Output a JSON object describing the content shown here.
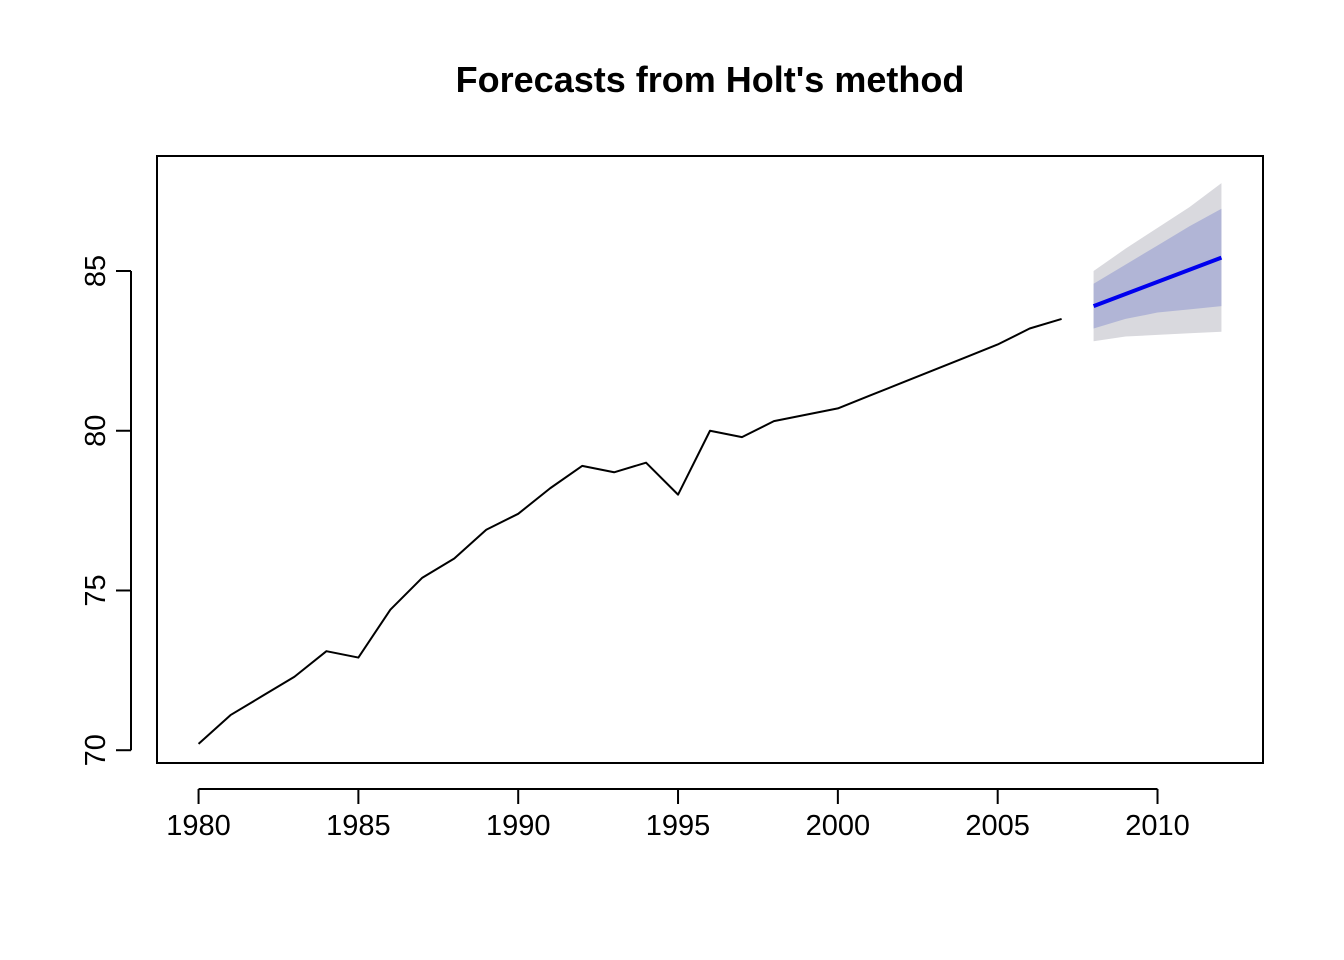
{
  "chart_data": {
    "type": "line",
    "title": "Forecasts from Holt's method",
    "xlabel": "",
    "ylabel": "",
    "xlim": [
      1978.7,
      2013.3
    ],
    "ylim": [
      69.6,
      88.6
    ],
    "x_ticks": [
      1980,
      1985,
      1990,
      1995,
      2000,
      2005,
      2010
    ],
    "y_ticks": [
      70,
      75,
      80,
      85
    ],
    "grid": false,
    "legend": "none",
    "series": [
      {
        "role": "observed",
        "color": "#000000",
        "x": [
          1980,
          1981,
          1982,
          1983,
          1984,
          1985,
          1986,
          1987,
          1988,
          1989,
          1990,
          1991,
          1992,
          1993,
          1994,
          1995,
          1996,
          1997,
          1998,
          1999,
          2000,
          2001,
          2002,
          2003,
          2004,
          2005,
          2006,
          2007
        ],
        "values": [
          70.2,
          71.1,
          71.7,
          72.3,
          73.1,
          72.9,
          74.4,
          75.4,
          76.0,
          76.9,
          77.4,
          78.2,
          78.9,
          78.7,
          79.0,
          78.0,
          80.0,
          79.8,
          80.3,
          80.5,
          80.7,
          81.1,
          81.5,
          81.9,
          82.3,
          82.7,
          83.2,
          83.5
        ]
      },
      {
        "role": "forecast",
        "color": "#0000EE",
        "x": [
          2008,
          2009,
          2010,
          2011,
          2012
        ],
        "values": [
          83.9,
          84.28,
          84.66,
          85.04,
          85.42
        ]
      }
    ],
    "intervals": [
      {
        "level": "95",
        "color": "#D9D9DE",
        "x": [
          2008,
          2009,
          2010,
          2011,
          2012
        ],
        "lower": [
          82.8,
          82.95,
          83.0,
          83.05,
          83.1
        ],
        "upper": [
          85.0,
          85.7,
          86.35,
          87.0,
          87.75
        ]
      },
      {
        "level": "80",
        "color": "#B1B5D6",
        "x": [
          2008,
          2009,
          2010,
          2011,
          2012
        ],
        "lower": [
          83.2,
          83.5,
          83.7,
          83.8,
          83.9
        ],
        "upper": [
          84.6,
          85.2,
          85.8,
          86.4,
          86.95
        ]
      }
    ]
  }
}
